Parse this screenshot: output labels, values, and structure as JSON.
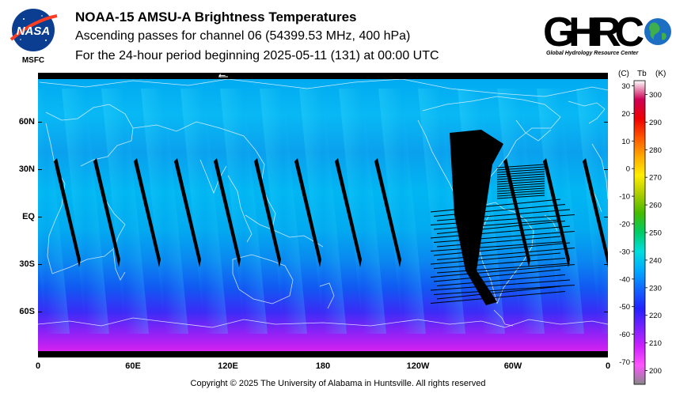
{
  "header": {
    "title": "NOAA-15 AMSU-A Brightness Temperatures",
    "subtitle": "Ascending passes for channel 06 (54399.53 MHz, 400 hPa)",
    "period": "For the 24-hour period beginning 2025-05-11 (131) at 00:00 UTC"
  },
  "logos": {
    "nasa_text": "NASA",
    "nasa_sub": "MSFC",
    "ghrc_text": "GHRC",
    "ghrc_sub": "Global Hydrology Resource Center"
  },
  "map": {
    "lat_labels": [
      "60N",
      "30N",
      "EQ",
      "30S",
      "60S"
    ],
    "lon_labels": [
      "0",
      "60E",
      "120E",
      "180",
      "120W",
      "60W",
      "0"
    ],
    "scan_direction_arrow": "←"
  },
  "colorbar": {
    "header_c": "(C)",
    "header_tb": "Tb",
    "header_k": "(K)",
    "celsius_ticks": [
      "30",
      "20",
      "10",
      "0",
      "-10",
      "-20",
      "-30",
      "-40",
      "-50",
      "-60",
      "-70"
    ],
    "kelvin_ticks": [
      "300",
      "290",
      "280",
      "270",
      "260",
      "250",
      "240",
      "230",
      "220",
      "210",
      "200"
    ],
    "k_min": 195,
    "k_max": 305,
    "colors": [
      "#888888",
      "#ff55ff",
      "#cc22ff",
      "#7722ff",
      "#2222ff",
      "#1166ff",
      "#00aaff",
      "#00dddd",
      "#00cc66",
      "#44bb00",
      "#aacc00",
      "#ffee00",
      "#ffaa00",
      "#ff5500",
      "#ee0000",
      "#cc0055",
      "#ffffff"
    ]
  },
  "footer": {
    "copyright": "Copyright © 2025 The University of Alabama in Huntsville.  All rights reserved"
  }
}
